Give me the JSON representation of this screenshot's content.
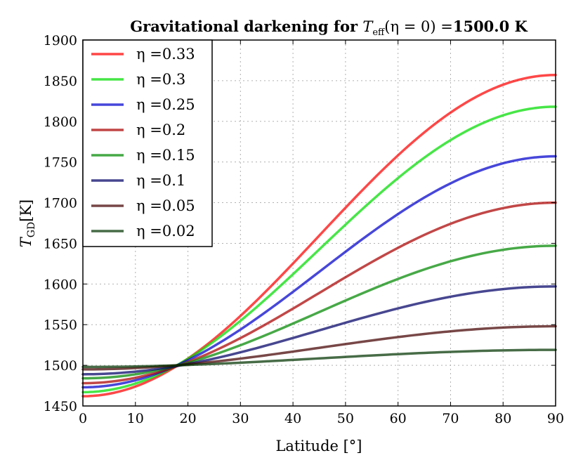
{
  "chart_data": {
    "type": "line",
    "title": "Gravitational darkening for T_eff(η = 0) =1500.0 K",
    "title_parts": {
      "prefix": "Gravitational darkening for ",
      "symbol": "T",
      "subscript": "eff",
      "condition": "(η = 0) =",
      "value": "1500.0 K"
    },
    "xlabel": "Latitude [°]",
    "ylabel": "T_GD[K]",
    "ylabel_parts": {
      "symbol": "T",
      "subscript": "GD",
      "unit": "[K]"
    },
    "xlim": [
      0,
      90
    ],
    "ylim": [
      1450,
      1900
    ],
    "xticks": [
      0,
      10,
      20,
      30,
      40,
      50,
      60,
      70,
      80,
      90
    ],
    "yticks": [
      1450,
      1500,
      1550,
      1600,
      1650,
      1700,
      1750,
      1800,
      1850,
      1900
    ],
    "grid": true,
    "legend_position": "top-left",
    "series": [
      {
        "name": "η =0.33",
        "eta": "0.33",
        "color": "#ff0000",
        "lat0": 1462,
        "lat90": 1857
      },
      {
        "name": "η =0.3",
        "eta": "0.3",
        "color": "#00dd00",
        "lat0": 1467,
        "lat90": 1818
      },
      {
        "name": "η =0.25",
        "eta": "0.25",
        "color": "#0000cc",
        "lat0": 1473,
        "lat90": 1757
      },
      {
        "name": "η =0.2",
        "eta": "0.2",
        "color": "#aa0000",
        "lat0": 1478,
        "lat90": 1700
      },
      {
        "name": "η =0.15",
        "eta": "0.15",
        "color": "#008800",
        "lat0": 1484,
        "lat90": 1647
      },
      {
        "name": "η =0.1",
        "eta": "0.1",
        "color": "#000066",
        "lat0": 1489,
        "lat90": 1597
      },
      {
        "name": "η =0.05",
        "eta": "0.05",
        "color": "#440000",
        "lat0": 1495,
        "lat90": 1548
      },
      {
        "name": "η =0.02",
        "eta": "0.02",
        "color": "#003300",
        "lat0": 1498,
        "lat90": 1519
      }
    ]
  }
}
